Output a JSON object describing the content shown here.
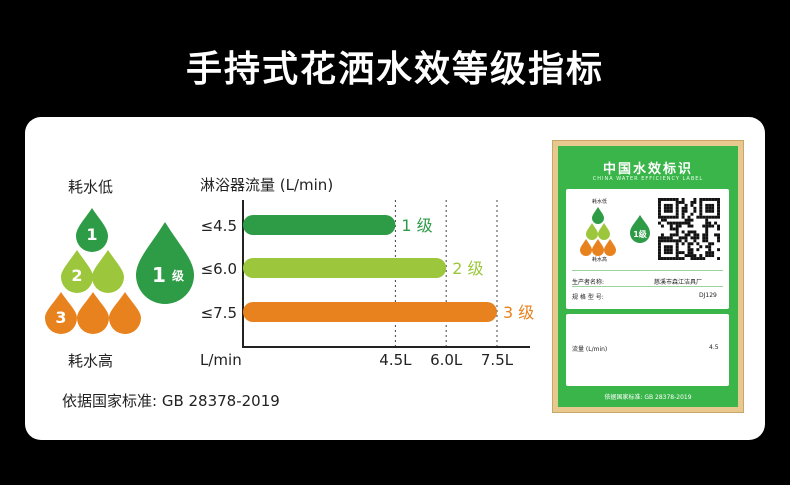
{
  "title": "手持式花洒水效等级指标",
  "legend": {
    "low_label": "耗水低",
    "high_label": "耗水高",
    "big_drop_number": "1",
    "big_drop_suffix": "级",
    "small_drops": [
      "1",
      "2",
      "3"
    ]
  },
  "colors": {
    "grade1": "#2e9b47",
    "grade2": "#9cc73c",
    "grade3": "#e8821e",
    "label_green": "#39b54a",
    "frame": "#e7c88f"
  },
  "chart_data": {
    "type": "bar",
    "orientation": "horizontal",
    "title": "淋浴器流量 (L/min)",
    "categories": [
      "≤4.5",
      "≤6.0",
      "≤7.5"
    ],
    "values": [
      4.5,
      6.0,
      7.5
    ],
    "bar_labels": [
      "1 级",
      "2 级",
      "3 级"
    ],
    "xlabel": "L/min",
    "xticks": [
      4.5,
      6.0,
      7.5
    ],
    "xtick_labels": [
      "4.5L",
      "6.0L",
      "7.5L"
    ],
    "xlim": [
      0,
      7.5
    ],
    "grid": "vertical dashed at ticks"
  },
  "standard_note": "依据国家标准:  GB 28378-2019",
  "label": {
    "title": "中国水效标识",
    "subtitle": "CHINA WATER EFFICIENCY LABEL",
    "grade_low": "耗水低",
    "grade_high": "耗水高",
    "grade_badge": "1级",
    "producer_key": "生产者名称:",
    "producer_val": "慈溪市森江洁具厂",
    "model_key": "规 格 型 号:",
    "model_val": "DJ129",
    "flow_key": "流量 (L/min)",
    "flow_val": "4.5",
    "footer": "依据国家标准:  GB 28378-2019"
  }
}
